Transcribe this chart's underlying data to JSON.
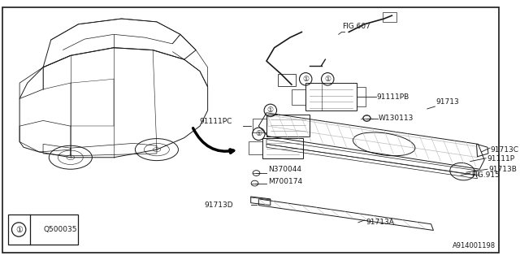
{
  "background_color": "#ffffff",
  "image_id": "A914001198",
  "legend_code": "Q500035",
  "fig607_label": "FIG.607",
  "fig915_label": "FIG.915",
  "dark": "#1a1a1a",
  "gray": "#888888",
  "light_gray": "#bbbbbb"
}
